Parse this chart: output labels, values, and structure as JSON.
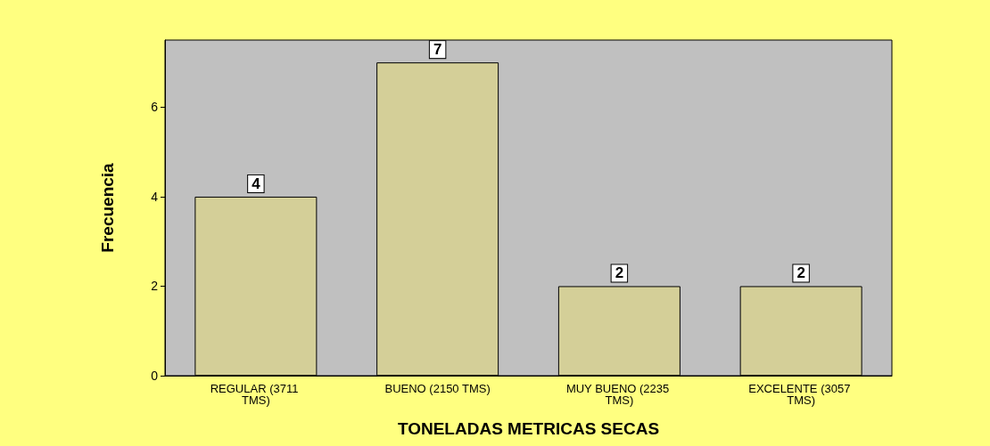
{
  "chart_data": {
    "type": "bar",
    "xlabel": "TONELADAS METRICAS SECAS",
    "ylabel": "Frecuencia",
    "categories": [
      "REGULAR (3711 TMS)",
      "BUENO (2150 TMS)",
      "MUY BUENO (2235 TMS)",
      "EXCELENTE (3057 TMS)"
    ],
    "values": [
      4,
      7,
      2,
      2
    ],
    "color": "#d4cf98",
    "ylim": [
      0,
      7.5
    ],
    "yticks": [
      0,
      2,
      4,
      6
    ],
    "grid": false,
    "data_labels": true
  }
}
